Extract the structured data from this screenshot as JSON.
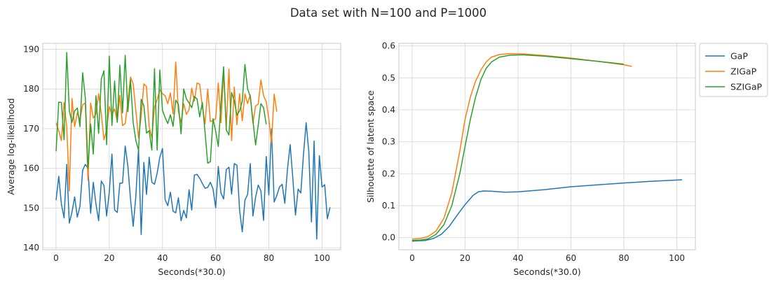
{
  "figure": {
    "suptitle": "Data set with N=100 and P=1000"
  },
  "colors": {
    "GaP": "#1f77b4",
    "ZIGaP": "#ff7f0e",
    "SZIGaP": "#2ca02c"
  },
  "chart_data": [
    {
      "type": "line",
      "xlabel": "Seconds(*30.0)",
      "ylabel": "Average log-likelihood",
      "xlim": [
        -5,
        107
      ],
      "ylim": [
        139.5,
        191.5
      ],
      "xticks": [
        0,
        20,
        40,
        60,
        80,
        100
      ],
      "yticks": [
        140,
        150,
        160,
        170,
        180,
        190
      ],
      "grid": true,
      "series": [
        {
          "key": "GaP",
          "x_start": 0,
          "x_step": 1,
          "values": [
            152,
            158,
            151,
            147.5,
            161,
            146.2,
            149,
            152.8,
            147.7,
            150.5,
            159.5,
            161,
            160,
            148.7,
            156.5,
            151,
            146.8,
            156.8,
            155.7,
            148,
            154,
            163.6,
            149.5,
            148.9,
            156.3,
            156.3,
            165.6,
            160.6,
            152.2,
            145.4,
            153,
            165,
            143.3,
            161.5,
            153.4,
            162.8,
            156.5,
            156,
            158.8,
            162.8,
            165,
            152.1,
            150.6,
            154,
            149.2,
            148.8,
            152.6,
            146.8,
            149.4,
            147.5,
            154.6,
            149.5,
            158.3,
            158.5,
            157.5,
            156.2,
            155,
            155.2,
            156.5,
            154.8,
            150.1,
            160.5,
            153.8,
            152.3,
            159.7,
            160.3,
            153.5,
            161.2,
            160.8,
            149.5,
            144,
            152,
            153.4,
            161.2,
            148,
            152.7,
            155.8,
            154.3,
            146.9,
            163,
            153.3,
            170,
            151.5,
            153.2,
            155.3,
            156,
            151.2,
            159.8,
            166,
            157.6,
            148.2,
            154.8,
            153.8,
            163.4,
            171.5,
            164.3,
            146.5,
            166.9,
            142.2,
            163.2,
            155.3,
            155.9,
            147.3,
            150.2
          ]
        },
        {
          "key": "ZIGaP",
          "x_start": 0,
          "x_step": 1,
          "values": [
            171.5,
            169.5,
            167,
            176.6,
            170.5,
            154.3,
            177.6,
            170.5,
            174,
            172.3,
            176,
            176.5,
            157,
            176.5,
            172.7,
            173.7,
            178.8,
            173.8,
            167.2,
            169.7,
            175.6,
            173.5,
            175,
            171.8,
            178.4,
            170.8,
            171.3,
            176.7,
            183,
            181.3,
            174.5,
            167.7,
            173.1,
            181.3,
            180.6,
            170.5,
            167.7,
            175.5,
            177.3,
            179.8,
            178.8,
            178.3,
            176.3,
            179,
            173.7,
            186.8,
            174.3,
            171.6,
            176.3,
            173.6,
            174.8,
            180.2,
            177,
            181.5,
            181.2,
            175.5,
            171.2,
            180,
            171.8,
            172.1,
            172.5,
            181.5,
            171.5,
            184.3,
            170.4,
            185,
            167,
            180.5,
            171,
            178.8,
            172,
            178.8,
            176.3,
            178.5,
            171.4,
            175.7,
            176.2,
            182.3,
            178.3,
            176.8,
            172.5,
            166.3,
            178.7,
            174.3
          ]
        },
        {
          "key": "SZIGaP",
          "x_start": 0,
          "x_step": 1,
          "values": [
            164.3,
            176.7,
            176.6,
            167.2,
            189.2,
            174.5,
            171.6,
            174.5,
            175.2,
            170.5,
            184.1,
            177.8,
            159.9,
            171.2,
            163.6,
            178.3,
            168.8,
            182.5,
            184.6,
            166,
            188.3,
            170.8,
            182,
            171.6,
            186,
            174,
            188.5,
            174.3,
            182.2,
            171.5,
            167,
            164.6,
            177.4,
            175.8,
            168.9,
            169.5,
            164.6,
            185.1,
            164.6,
            184.8,
            174.6,
            172.8,
            171.3,
            173.5,
            170.6,
            177.2,
            176.1,
            168.7,
            180,
            177.5,
            176.5,
            175.3,
            178.1,
            177.5,
            173,
            176.6,
            169.1,
            161.3,
            161.7,
            172.5,
            169.3,
            165.5,
            176.4,
            185.6,
            169.7,
            168.4,
            179.1,
            177,
            173.4,
            174.5,
            176.9,
            186.2,
            180,
            178.1,
            172.1,
            165.9,
            170.9,
            176.3,
            175.3,
            171.1
          ]
        }
      ]
    },
    {
      "type": "line",
      "xlabel": "Seconds(*30.0)",
      "ylabel": "Silhouette of latent space",
      "xlim": [
        -5,
        107
      ],
      "ylim": [
        -0.038,
        0.608
      ],
      "xticks": [
        0,
        20,
        40,
        60,
        80,
        100
      ],
      "yticks": [
        0.0,
        0.1,
        0.2,
        0.3,
        0.4,
        0.5,
        0.6
      ],
      "grid": true,
      "legend": {
        "placement": "outside-right-top",
        "entries": [
          "GaP",
          "ZIGaP",
          "SZIGaP"
        ]
      },
      "series": [
        {
          "key": "GaP",
          "name": "GaP",
          "points": [
            [
              0,
              -0.011
            ],
            [
              5,
              -0.009
            ],
            [
              8,
              -0.003
            ],
            [
              11,
              0.01
            ],
            [
              14,
              0.035
            ],
            [
              17,
              0.07
            ],
            [
              20,
              0.103
            ],
            [
              23,
              0.132
            ],
            [
              25,
              0.143
            ],
            [
              27,
              0.146
            ],
            [
              30,
              0.145
            ],
            [
              35,
              0.142
            ],
            [
              40,
              0.143
            ],
            [
              50,
              0.15
            ],
            [
              60,
              0.159
            ],
            [
              70,
              0.165
            ],
            [
              80,
              0.171
            ],
            [
              90,
              0.176
            ],
            [
              102,
              0.181
            ]
          ]
        },
        {
          "key": "ZIGaP",
          "name": "ZIGaP",
          "points": [
            [
              0,
              -0.005
            ],
            [
              3,
              -0.003
            ],
            [
              6,
              0.003
            ],
            [
              9,
              0.02
            ],
            [
              12,
              0.06
            ],
            [
              15,
              0.14
            ],
            [
              18,
              0.27
            ],
            [
              20,
              0.37
            ],
            [
              22,
              0.44
            ],
            [
              24,
              0.49
            ],
            [
              26,
              0.525
            ],
            [
              28,
              0.55
            ],
            [
              30,
              0.565
            ],
            [
              33,
              0.573
            ],
            [
              37,
              0.576
            ],
            [
              42,
              0.575
            ],
            [
              50,
              0.57
            ],
            [
              60,
              0.562
            ],
            [
              70,
              0.552
            ],
            [
              80,
              0.541
            ],
            [
              83,
              0.536
            ]
          ]
        },
        {
          "key": "SZIGaP",
          "name": "SZIGaP",
          "points": [
            [
              0,
              -0.009
            ],
            [
              3,
              -0.008
            ],
            [
              6,
              -0.004
            ],
            [
              9,
              0.01
            ],
            [
              12,
              0.04
            ],
            [
              15,
              0.1
            ],
            [
              18,
              0.2
            ],
            [
              20,
              0.285
            ],
            [
              22,
              0.37
            ],
            [
              24,
              0.44
            ],
            [
              26,
              0.495
            ],
            [
              28,
              0.53
            ],
            [
              30,
              0.55
            ],
            [
              33,
              0.565
            ],
            [
              37,
              0.571
            ],
            [
              42,
              0.572
            ],
            [
              50,
              0.568
            ],
            [
              60,
              0.56
            ],
            [
              70,
              0.552
            ],
            [
              80,
              0.543
            ]
          ]
        }
      ]
    }
  ]
}
